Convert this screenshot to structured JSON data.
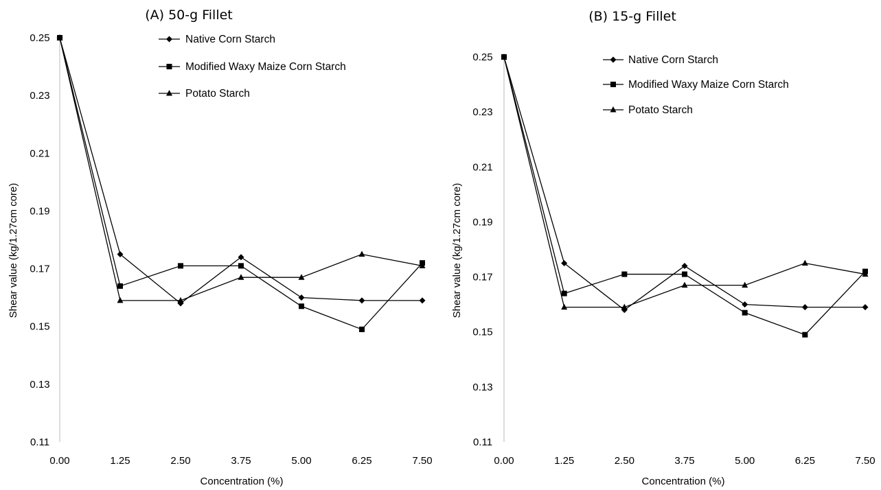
{
  "chart_data": [
    {
      "type": "line",
      "title": "(A) 50-g Fillet",
      "xlabel": "Concentration (%)",
      "ylabel": "Shear value (kg/1.27cm core)",
      "x_ticks": [
        "0.00",
        "1.25",
        "2.50",
        "3.75",
        "5.00",
        "6.25",
        "7.50"
      ],
      "y_ticks": [
        "0.25",
        "0.23",
        "0.21",
        "0.19",
        "0.17",
        "0.15",
        "0.13",
        "0.11"
      ],
      "x": [
        0.0,
        1.25,
        2.5,
        3.75,
        5.0,
        6.25,
        7.5
      ],
      "ylim": [
        0.11,
        0.25
      ],
      "grid": false,
      "legend_position": "top-right",
      "series": [
        {
          "name": "Native Corn Starch",
          "marker": "diamond",
          "values": [
            0.25,
            0.175,
            0.158,
            0.174,
            0.16,
            0.159,
            0.159
          ]
        },
        {
          "name": "Modified Waxy Maize Corn Starch",
          "marker": "square",
          "values": [
            0.25,
            0.164,
            0.171,
            0.171,
            0.157,
            0.149,
            0.172
          ]
        },
        {
          "name": "Potato Starch",
          "marker": "triangle",
          "values": [
            0.25,
            0.159,
            0.159,
            0.167,
            0.167,
            0.175,
            0.171
          ]
        }
      ]
    },
    {
      "type": "line",
      "title": "(B) 15-g Fillet",
      "xlabel": "Concentration (%)",
      "ylabel": "Shear value (kg/1.27cm core)",
      "x_ticks": [
        "0.00",
        "1.25",
        "2.50",
        "3.75",
        "5.00",
        "6.25",
        "7.50"
      ],
      "y_ticks": [
        "0.25",
        "0.23",
        "0.21",
        "0.19",
        "0.17",
        "0.15",
        "0.13",
        "0.11"
      ],
      "x": [
        0.0,
        1.25,
        2.5,
        3.75,
        5.0,
        6.25,
        7.5
      ],
      "ylim": [
        0.11,
        0.25
      ],
      "grid": false,
      "legend_position": "top-right",
      "series": [
        {
          "name": "Native Corn Starch",
          "marker": "diamond",
          "values": [
            0.25,
            0.175,
            0.158,
            0.174,
            0.16,
            0.159,
            0.159
          ]
        },
        {
          "name": "Modified Waxy Maize Corn Starch",
          "marker": "square",
          "values": [
            0.25,
            0.164,
            0.171,
            0.171,
            0.157,
            0.149,
            0.172
          ]
        },
        {
          "name": "Potato Starch",
          "marker": "triangle",
          "values": [
            0.25,
            0.159,
            0.159,
            0.167,
            0.167,
            0.175,
            0.171
          ]
        }
      ]
    }
  ]
}
